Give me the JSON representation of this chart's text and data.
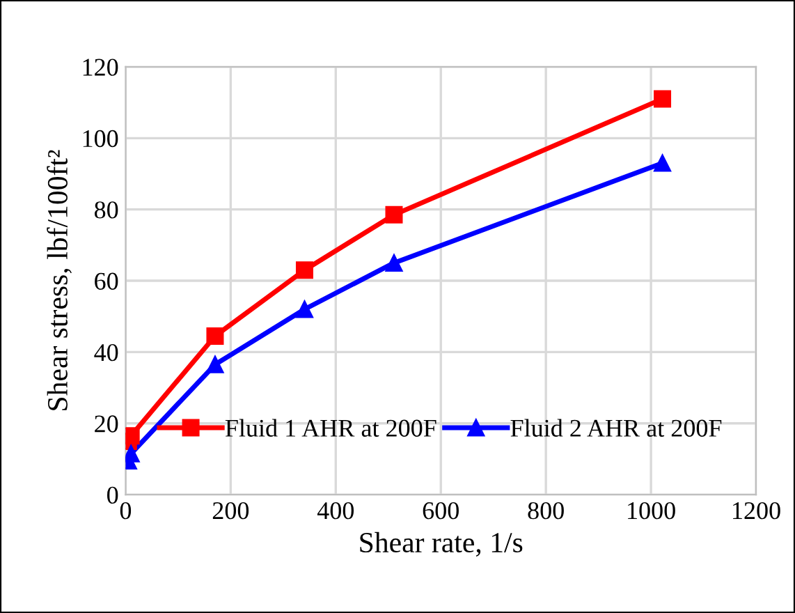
{
  "chart_data": {
    "type": "line",
    "xlabel": "Shear rate, 1/s",
    "ylabel": "Shear stress, lbf/100ft²",
    "xlim": [
      0,
      1200
    ],
    "xticks": [
      0,
      200,
      400,
      600,
      800,
      1000,
      1200
    ],
    "ylim": [
      0,
      120
    ],
    "yticks": [
      0,
      20,
      40,
      60,
      80,
      100,
      120
    ],
    "x": [
      5.11,
      10.22,
      170.3,
      340.6,
      510.9,
      1021.8
    ],
    "series": [
      {
        "name": "Fluid 1 AHR at 200F",
        "color": "#ff0000",
        "marker": "square",
        "values": [
          15,
          16.5,
          44.5,
          63,
          78.5,
          111
        ]
      },
      {
        "name": "Fluid 2 AHR at 200F",
        "color": "#0000ff",
        "marker": "triangle",
        "values": [
          9.5,
          11.5,
          36.5,
          52,
          65,
          93
        ]
      }
    ],
    "grid": true,
    "legend": "bottom",
    "line_style": "solid"
  }
}
